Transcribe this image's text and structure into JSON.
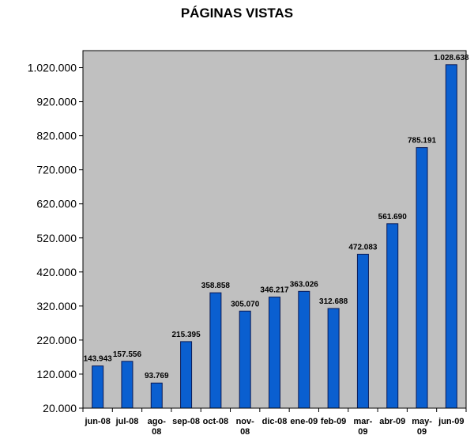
{
  "chart_data": {
    "type": "bar",
    "title": "PÁGINAS VISTAS",
    "xlabel": "",
    "ylabel": "",
    "categories": [
      "jun-08",
      "jul-08",
      "ago-08",
      "sep-08",
      "oct-08",
      "nov-08",
      "dic-08",
      "ene-09",
      "feb-09",
      "mar-09",
      "abr-09",
      "may-09",
      "jun-09"
    ],
    "category_lines": [
      [
        "jun-08"
      ],
      [
        "jul-08"
      ],
      [
        "ago-",
        "08"
      ],
      [
        "sep-08"
      ],
      [
        "oct-08"
      ],
      [
        "nov-",
        "08"
      ],
      [
        "dic-08"
      ],
      [
        "ene-09"
      ],
      [
        "feb-09"
      ],
      [
        "mar-",
        "09"
      ],
      [
        "abr-09"
      ],
      [
        "may-",
        "09"
      ],
      [
        "jun-09"
      ]
    ],
    "values": [
      143943,
      157556,
      93769,
      215395,
      358858,
      305070,
      346217,
      363026,
      312688,
      472083,
      561690,
      785191,
      1028638
    ],
    "value_labels": [
      "143.943",
      "157.556",
      "93.769",
      "215.395",
      "358.858",
      "305.070",
      "346.217",
      "363.026",
      "312.688",
      "472.083",
      "561.690",
      "785.191",
      "1.028.638"
    ],
    "ylim": [
      20000,
      1070000
    ],
    "yticks": [
      20000,
      120000,
      220000,
      320000,
      420000,
      520000,
      620000,
      720000,
      820000,
      920000,
      1020000
    ],
    "ytick_labels": [
      "20.000",
      "120.000",
      "220.000",
      "320.000",
      "420.000",
      "520.000",
      "620.000",
      "720.000",
      "820.000",
      "920.000",
      "1.020.000"
    ],
    "grid": false,
    "legend": "none",
    "colors": {
      "bar": "#0a5fd0",
      "bar_edge": "#0a1a55",
      "plot_background": "#c0c0c0"
    }
  }
}
